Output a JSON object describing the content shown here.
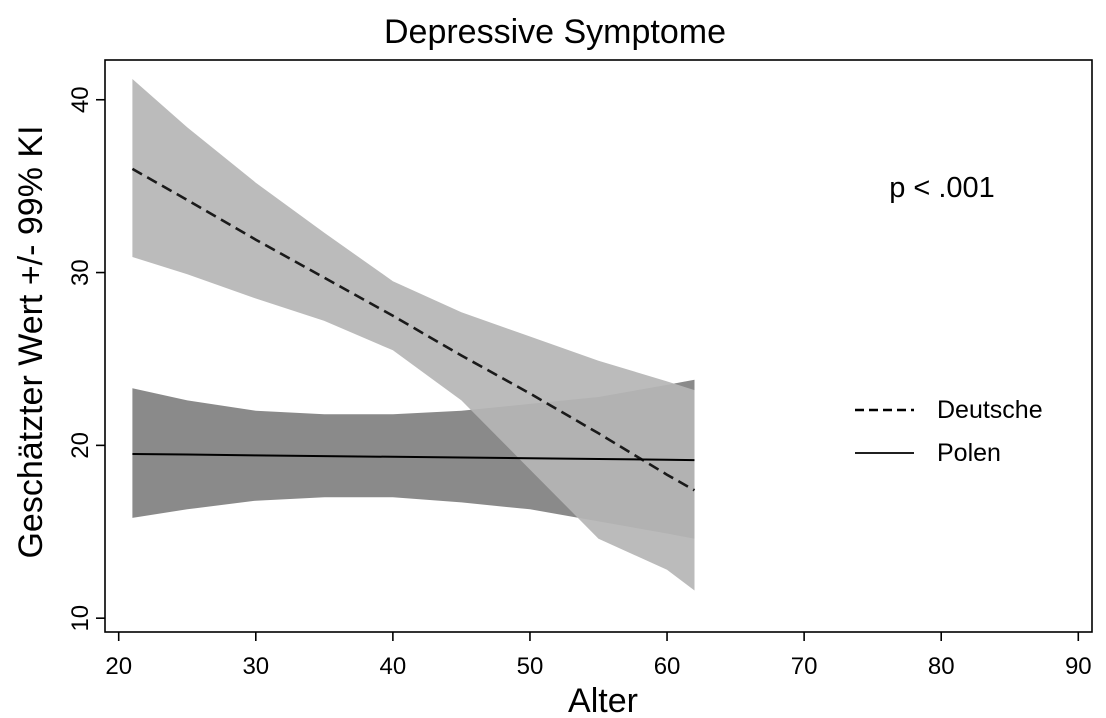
{
  "chart_data": {
    "type": "line",
    "title": "Depressive Symptome",
    "xlabel": "Alter",
    "ylabel": "Geschätzter Wert +/- 99% KI",
    "xlim": [
      19,
      91
    ],
    "ylim": [
      9.2,
      42.3
    ],
    "xticks": [
      20,
      30,
      40,
      50,
      60,
      70,
      80,
      90
    ],
    "yticks": [
      10,
      20,
      30,
      40
    ],
    "grid": false,
    "legend_position": "right",
    "annotation": "p < .001",
    "series": [
      {
        "name": "Deutsche",
        "line_style": "dashed",
        "band_color": "#b5b5b5",
        "line_color": "#1a1a1a",
        "x": [
          21,
          25,
          30,
          35,
          40,
          45,
          50,
          55,
          60,
          62
        ],
        "y": [
          36.0,
          34.2,
          31.9,
          29.7,
          27.5,
          25.2,
          23.0,
          20.7,
          18.3,
          17.4
        ],
        "ci_lower": [
          30.9,
          29.9,
          28.5,
          27.2,
          25.5,
          22.6,
          18.6,
          14.6,
          12.8,
          11.6
        ],
        "ci_upper": [
          41.2,
          38.4,
          35.2,
          32.3,
          29.5,
          27.7,
          26.3,
          24.9,
          23.7,
          23.2
        ]
      },
      {
        "name": "Polen",
        "line_style": "solid",
        "band_color": "#808080",
        "line_color": "#000000",
        "x": [
          21,
          25,
          30,
          35,
          40,
          45,
          50,
          55,
          60,
          62
        ],
        "y": [
          19.5,
          19.47,
          19.42,
          19.38,
          19.34,
          19.3,
          19.25,
          19.21,
          19.17,
          19.15
        ],
        "ci_lower": [
          15.8,
          16.3,
          16.8,
          17.0,
          17.0,
          16.7,
          16.3,
          15.6,
          14.9,
          14.6
        ],
        "ci_upper": [
          23.3,
          22.6,
          22.0,
          21.8,
          21.8,
          22.0,
          22.4,
          22.8,
          23.5,
          23.8
        ]
      }
    ]
  }
}
